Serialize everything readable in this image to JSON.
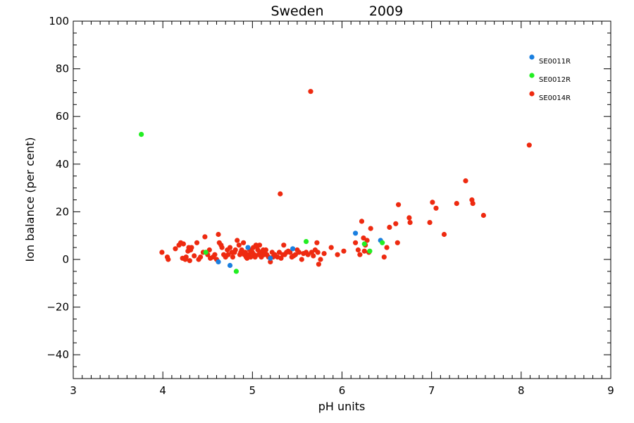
{
  "chart_data": {
    "type": "scatter",
    "title": "Sweden",
    "title_year": "2009",
    "xlabel": "pH units",
    "ylabel": "Ion balance (per cent)",
    "xlim": [
      3,
      9
    ],
    "ylim": [
      -50,
      100
    ],
    "x_ticks": [
      3,
      4,
      5,
      6,
      7,
      8,
      9
    ],
    "y_ticks": [
      -40,
      -20,
      0,
      20,
      40,
      60,
      80,
      100
    ],
    "x_tick_labels": [
      "3",
      "4",
      "5",
      "6",
      "7",
      "8",
      "9"
    ],
    "y_tick_labels": [
      "−40",
      "−20",
      "0",
      "20",
      "40",
      "60",
      "80",
      "100"
    ],
    "grid": false,
    "legend_position": "top-right",
    "series": [
      {
        "name": "SE0011R",
        "color": "#1a7fe0",
        "points": [
          [
            4.62,
            -1
          ],
          [
            4.75,
            -2.5
          ],
          [
            4.95,
            5
          ],
          [
            5.45,
            4.5
          ],
          [
            5.2,
            0.5
          ],
          [
            6.15,
            11
          ],
          [
            6.43,
            8
          ]
        ]
      },
      {
        "name": "SE0012R",
        "color": "#22ee22",
        "points": [
          [
            3.76,
            52.5
          ],
          [
            4.48,
            3
          ],
          [
            4.82,
            -5
          ],
          [
            5.6,
            7.5
          ],
          [
            6.25,
            6.5
          ],
          [
            6.31,
            3.5
          ],
          [
            6.45,
            7
          ]
        ]
      },
      {
        "name": "SE0014R",
        "color": "#ee2a10",
        "points": [
          [
            3.99,
            3
          ],
          [
            4.05,
            1
          ],
          [
            4.06,
            0
          ],
          [
            4.14,
            4.5
          ],
          [
            4.18,
            6
          ],
          [
            4.2,
            7
          ],
          [
            4.23,
            6.5
          ],
          [
            4.22,
            0.5
          ],
          [
            4.25,
            0
          ],
          [
            4.26,
            1
          ],
          [
            4.28,
            3.5
          ],
          [
            4.29,
            5
          ],
          [
            4.31,
            4
          ],
          [
            4.32,
            5
          ],
          [
            4.3,
            -0.5
          ],
          [
            4.35,
            1.5
          ],
          [
            4.38,
            7
          ],
          [
            4.4,
            0
          ],
          [
            4.42,
            1
          ],
          [
            4.45,
            3
          ],
          [
            4.47,
            9.5
          ],
          [
            4.5,
            2
          ],
          [
            4.52,
            4
          ],
          [
            4.53,
            0.5
          ],
          [
            4.56,
            1
          ],
          [
            4.58,
            2
          ],
          [
            4.6,
            0
          ],
          [
            4.62,
            10.5
          ],
          [
            4.63,
            7
          ],
          [
            4.65,
            6
          ],
          [
            4.66,
            5
          ],
          [
            4.68,
            2
          ],
          [
            4.7,
            1
          ],
          [
            4.72,
            4
          ],
          [
            4.73,
            2
          ],
          [
            4.75,
            5
          ],
          [
            4.77,
            3
          ],
          [
            4.78,
            1
          ],
          [
            4.8,
            3
          ],
          [
            4.81,
            4
          ],
          [
            4.83,
            8
          ],
          [
            4.85,
            6
          ],
          [
            4.86,
            2
          ],
          [
            4.87,
            3
          ],
          [
            4.88,
            4
          ],
          [
            4.9,
            7
          ],
          [
            4.91,
            2
          ],
          [
            4.92,
            3
          ],
          [
            4.93,
            1
          ],
          [
            4.94,
            0.5
          ],
          [
            4.96,
            2
          ],
          [
            4.97,
            4
          ],
          [
            4.98,
            1
          ],
          [
            5.0,
            3
          ],
          [
            5.01,
            5
          ],
          [
            5.02,
            2
          ],
          [
            5.03,
            1
          ],
          [
            5.04,
            6
          ],
          [
            5.05,
            5.5
          ],
          [
            5.06,
            4
          ],
          [
            5.07,
            2
          ],
          [
            5.08,
            6
          ],
          [
            5.09,
            3
          ],
          [
            5.1,
            1
          ],
          [
            5.12,
            4
          ],
          [
            5.13,
            2
          ],
          [
            5.14,
            3
          ],
          [
            5.15,
            4
          ],
          [
            5.16,
            2
          ],
          [
            5.18,
            1
          ],
          [
            5.2,
            -1
          ],
          [
            5.22,
            3
          ],
          [
            5.23,
            1
          ],
          [
            5.25,
            2
          ],
          [
            5.28,
            1
          ],
          [
            5.3,
            3
          ],
          [
            5.31,
            27.5
          ],
          [
            5.32,
            0.5
          ],
          [
            5.34,
            2
          ],
          [
            5.35,
            6
          ],
          [
            5.36,
            2
          ],
          [
            5.38,
            3
          ],
          [
            5.4,
            3.5
          ],
          [
            5.42,
            3
          ],
          [
            5.44,
            1
          ],
          [
            5.46,
            1.5
          ],
          [
            5.48,
            2
          ],
          [
            5.5,
            4
          ],
          [
            5.52,
            3
          ],
          [
            5.55,
            0
          ],
          [
            5.57,
            2.5
          ],
          [
            5.6,
            3
          ],
          [
            5.62,
            2
          ],
          [
            5.65,
            70.5
          ],
          [
            5.66,
            3
          ],
          [
            5.68,
            1.5
          ],
          [
            5.7,
            4
          ],
          [
            5.72,
            7
          ],
          [
            5.73,
            3
          ],
          [
            5.74,
            -2
          ],
          [
            5.76,
            0
          ],
          [
            5.8,
            2.5
          ],
          [
            5.88,
            5
          ],
          [
            5.95,
            2
          ],
          [
            6.02,
            3.5
          ],
          [
            6.15,
            7
          ],
          [
            6.18,
            4
          ],
          [
            6.2,
            2
          ],
          [
            6.22,
            16
          ],
          [
            6.24,
            9
          ],
          [
            6.25,
            3.5
          ],
          [
            6.26,
            6
          ],
          [
            6.28,
            8
          ],
          [
            6.3,
            3
          ],
          [
            6.32,
            13
          ],
          [
            6.47,
            1
          ],
          [
            6.5,
            5
          ],
          [
            6.53,
            13.5
          ],
          [
            6.6,
            15
          ],
          [
            6.62,
            7
          ],
          [
            6.63,
            23
          ],
          [
            6.75,
            17.5
          ],
          [
            6.76,
            15.5
          ],
          [
            6.98,
            15.5
          ],
          [
            7.01,
            24
          ],
          [
            7.05,
            21.5
          ],
          [
            7.14,
            10.5
          ],
          [
            7.28,
            23.5
          ],
          [
            7.38,
            33
          ],
          [
            7.45,
            25
          ],
          [
            7.46,
            23.5
          ],
          [
            7.58,
            18.5
          ],
          [
            8.09,
            48
          ]
        ]
      }
    ]
  }
}
